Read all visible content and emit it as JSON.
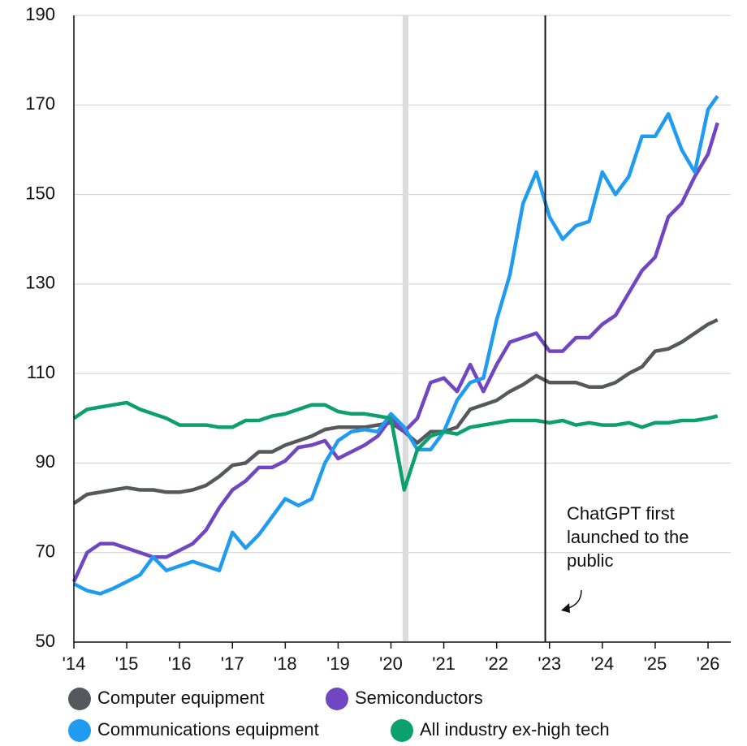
{
  "chart_data": {
    "type": "line",
    "x": [
      2014,
      2014.25,
      2014.5,
      2014.75,
      2015,
      2015.25,
      2015.5,
      2015.75,
      2016,
      2016.25,
      2016.5,
      2016.75,
      2017,
      2017.25,
      2017.5,
      2017.75,
      2018,
      2018.25,
      2018.5,
      2018.75,
      2019,
      2019.25,
      2019.5,
      2019.75,
      2020,
      2020.25,
      2020.5,
      2020.75,
      2021,
      2021.25,
      2021.5,
      2021.75,
      2022,
      2022.25,
      2022.5,
      2022.75,
      2023,
      2023.25,
      2023.5,
      2023.75,
      2024,
      2024.25,
      2024.5,
      2024.75,
      2025,
      2025.25,
      2025.5,
      2025.75,
      2026,
      2026.18
    ],
    "series": [
      {
        "name": "Computer equipment",
        "color": "#55595d",
        "values": [
          81,
          83,
          83.5,
          84,
          84.5,
          84,
          84,
          83.5,
          83.5,
          84,
          85,
          87,
          89.5,
          90,
          92.5,
          92.5,
          94,
          95,
          96,
          97.5,
          98,
          98,
          98,
          98.5,
          99,
          97,
          94.5,
          97,
          97,
          98,
          102,
          103,
          104,
          106,
          107.5,
          109.5,
          108,
          108,
          108,
          107,
          107,
          108,
          110,
          111.5,
          115,
          115.5,
          117,
          119,
          121,
          122
        ]
      },
      {
        "name": "Semiconductors",
        "color": "#7046c2",
        "values": [
          63.5,
          70,
          72,
          72,
          71,
          70,
          69,
          69,
          70.5,
          72,
          75,
          80,
          84,
          86,
          89,
          89,
          90.5,
          93.5,
          94,
          95,
          91,
          92.5,
          94,
          96,
          100,
          97,
          100,
          108,
          109,
          106,
          112,
          106,
          112,
          117,
          118,
          119,
          115,
          115,
          118,
          118,
          121,
          123,
          128,
          133,
          136,
          145,
          148,
          154,
          159,
          166
        ]
      },
      {
        "name": "Communications equipment",
        "color": "#1f9cf0",
        "values": [
          63,
          61.5,
          60.8,
          62,
          63.5,
          65,
          69,
          66,
          67,
          68,
          67,
          66,
          74.5,
          71,
          74,
          78,
          82,
          80.5,
          82,
          90,
          95,
          97,
          97.5,
          97,
          101,
          98,
          93,
          93,
          97,
          104,
          108,
          109,
          122,
          132,
          148,
          155,
          145,
          140,
          143,
          144,
          155,
          150,
          154,
          163,
          163,
          168,
          160,
          155,
          169,
          172
        ]
      },
      {
        "name": "All industry ex-high tech",
        "color": "#0ca06e",
        "values": [
          100,
          102,
          102.5,
          103,
          103.5,
          102,
          101,
          100,
          98.5,
          98.5,
          98.5,
          98,
          98,
          99.5,
          99.5,
          100.5,
          101,
          102,
          103,
          103,
          101.5,
          101,
          101,
          100.5,
          100,
          84,
          93,
          96,
          97,
          96.5,
          98,
          98.5,
          99,
          99.5,
          99.5,
          99.5,
          99,
          99.5,
          98.5,
          99,
          98.5,
          98.5,
          99,
          98,
          99,
          99,
          99.5,
          99.5,
          100,
          100.5
        ]
      }
    ],
    "xlim": [
      2014,
      2026.43
    ],
    "xticks": [
      {
        "value": 2014,
        "label": "'14"
      },
      {
        "value": 2015,
        "label": "'15"
      },
      {
        "value": 2016,
        "label": "'16"
      },
      {
        "value": 2017,
        "label": "'17"
      },
      {
        "value": 2018,
        "label": "'18"
      },
      {
        "value": 2019,
        "label": "'19"
      },
      {
        "value": 2020,
        "label": "'20"
      },
      {
        "value": 2021,
        "label": "'21"
      },
      {
        "value": 2022,
        "label": "'22"
      },
      {
        "value": 2023,
        "label": "'23"
      },
      {
        "value": 2024,
        "label": "'24"
      },
      {
        "value": 2025,
        "label": "'25"
      },
      {
        "value": 2026,
        "label": "'26"
      }
    ],
    "ylim": [
      50,
      190
    ],
    "yticks": [
      50,
      70,
      90,
      110,
      130,
      150,
      170,
      190
    ],
    "grid": true,
    "shaded_band": [
      2020.22,
      2020.33
    ],
    "event_line": 2022.92,
    "annotation": [
      "ChatGPT first",
      "launched to the",
      "public"
    ],
    "legend": "bottom"
  }
}
